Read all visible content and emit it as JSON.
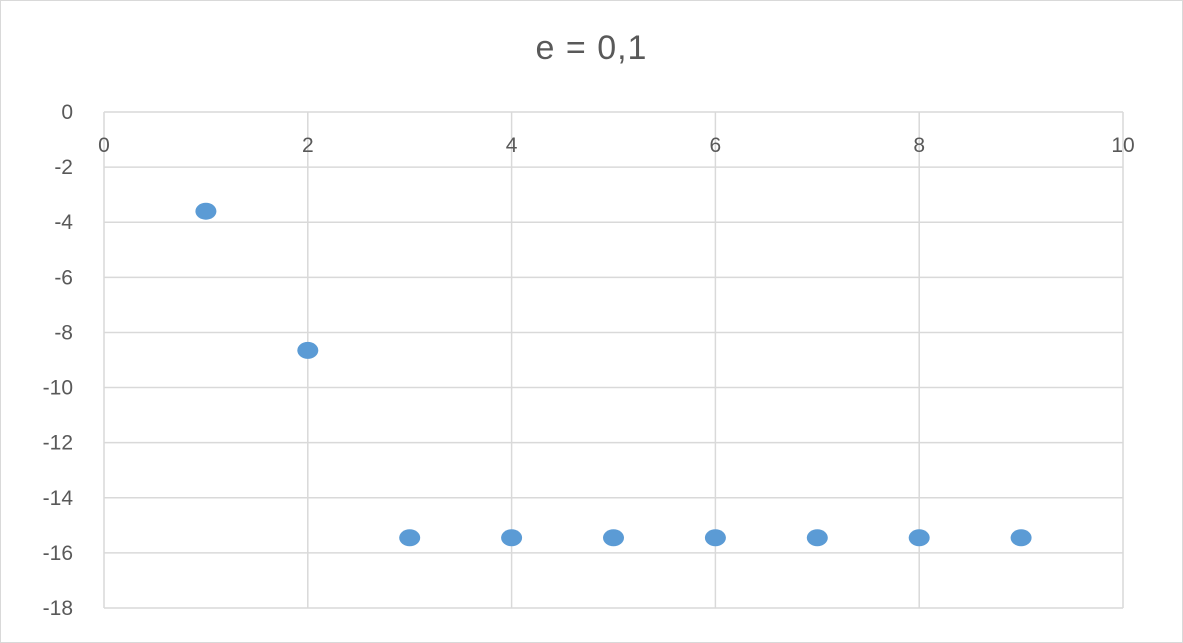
{
  "chart_data": {
    "type": "scatter",
    "title": "e = 0,1",
    "xlabel": "",
    "ylabel": "",
    "xlim": [
      0,
      10
    ],
    "ylim": [
      -18,
      0
    ],
    "x_ticks": [
      0,
      2,
      4,
      6,
      8,
      10
    ],
    "y_ticks": [
      0,
      -2,
      -4,
      -6,
      -8,
      -10,
      -12,
      -14,
      -16,
      -18
    ],
    "x_tick_labels": [
      "0",
      "2",
      "4",
      "6",
      "8",
      "10"
    ],
    "y_tick_labels": [
      "0",
      "-2",
      "-4",
      "-6",
      "-8",
      "-10",
      "-12",
      "-14",
      "-16",
      "-18"
    ],
    "x_axis_position": "top",
    "grid": true,
    "legend": "none",
    "series": [
      {
        "color": "#5b9bd5",
        "points": [
          {
            "x": 1,
            "y": -3.6
          },
          {
            "x": 2,
            "y": -8.65
          },
          {
            "x": 3,
            "y": -15.45
          },
          {
            "x": 4,
            "y": -15.45
          },
          {
            "x": 5,
            "y": -15.45
          },
          {
            "x": 6,
            "y": -15.45
          },
          {
            "x": 7,
            "y": -15.45
          },
          {
            "x": 8,
            "y": -15.45
          },
          {
            "x": 9,
            "y": -15.45
          }
        ]
      }
    ],
    "colors": {
      "gridline": "#d9d9d9",
      "tick_text": "#595959",
      "title_text": "#595959"
    }
  }
}
